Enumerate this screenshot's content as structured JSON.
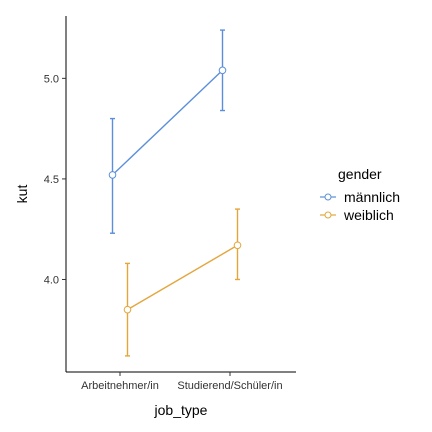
{
  "chart_data": {
    "type": "line",
    "xlabel": "job_type",
    "ylabel": "kut",
    "categories": [
      "Arbeitnehmer/in",
      "Studierend/Schüler/in"
    ],
    "ylim": [
      3.54,
      5.31
    ],
    "yticks": [
      4.0,
      4.5,
      5.0
    ],
    "ytick_labels": [
      "4.0",
      "4.5",
      "5.0"
    ],
    "grid": false,
    "legend": {
      "title": "gender",
      "position": "right"
    },
    "series": [
      {
        "name": "männlich",
        "color": "#5b8fd9",
        "values": [
          4.52,
          5.04
        ],
        "lower": [
          4.23,
          4.84
        ],
        "upper": [
          4.8,
          5.24
        ]
      },
      {
        "name": "weiblich",
        "color": "#e3a63c",
        "values": [
          3.85,
          4.17
        ],
        "lower": [
          3.62,
          4.0
        ],
        "upper": [
          4.08,
          4.35
        ]
      }
    ]
  }
}
